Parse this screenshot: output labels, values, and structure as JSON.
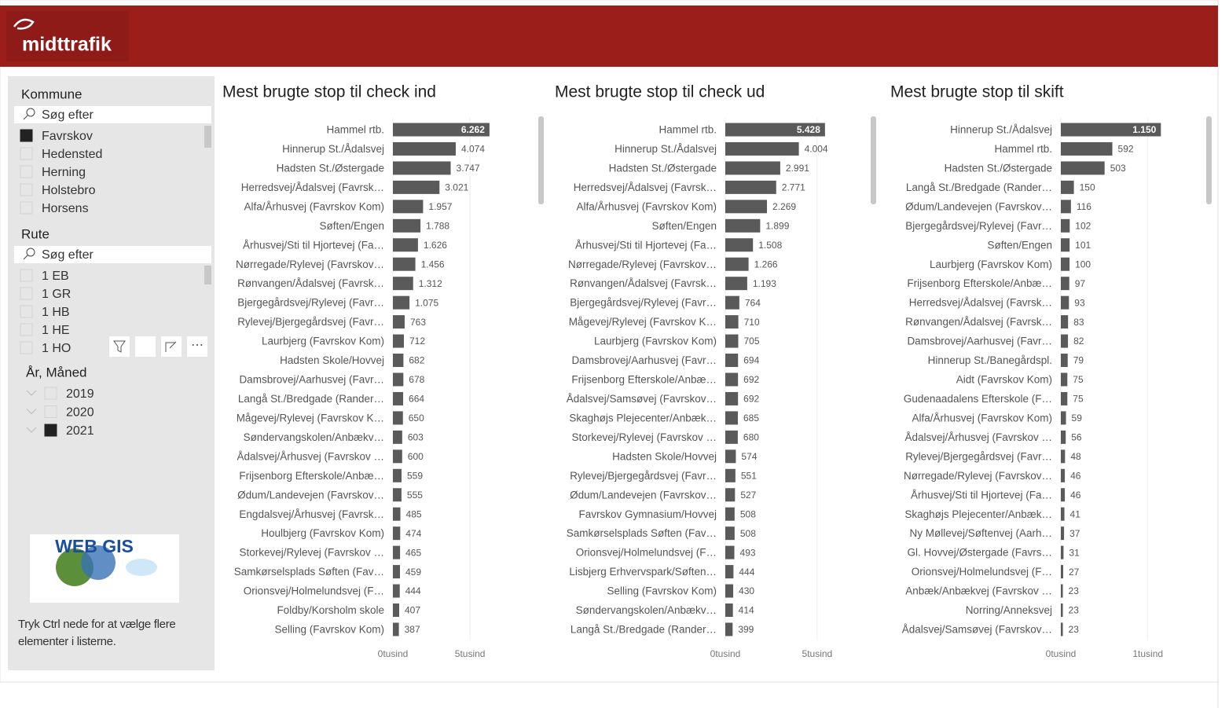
{
  "header": {
    "logo": "midttrafik"
  },
  "slicers": [
    {
      "title": "Kommune",
      "search": "Søg efter",
      "items": [
        {
          "label": "Favrskov",
          "selected": true
        },
        {
          "label": "Hedensted",
          "selected": false
        },
        {
          "label": "Herning",
          "selected": false
        },
        {
          "label": "Holstebro",
          "selected": false
        },
        {
          "label": "Horsens",
          "selected": false
        }
      ]
    },
    {
      "title": "Rute",
      "search": "Søg efter",
      "items": [
        {
          "label": "1 EB",
          "selected": false
        },
        {
          "label": "1 GR",
          "selected": false
        },
        {
          "label": "1 HB",
          "selected": false
        },
        {
          "label": "1 HE",
          "selected": false
        },
        {
          "label": "1 HO",
          "selected": false
        }
      ]
    },
    {
      "title": "År, Måned",
      "items": [
        {
          "label": "2019",
          "selected": false
        },
        {
          "label": "2020",
          "selected": false
        },
        {
          "label": "2021",
          "selected": true
        }
      ]
    }
  ],
  "webgis_logo": "WEB GIS",
  "footer_note": "Tryk Ctrl nede for at vælge flere elementer i listerne.",
  "chart_data": [
    {
      "type": "bar",
      "orientation": "horizontal",
      "title": "Mest brugte stop til check ind",
      "color": "#5a5a5a",
      "categories": [
        "Hammel rtb.",
        "Hinnerup St./Ådalsvej",
        "Hadsten St./Østergade",
        "Herredsvej/Ådalsvej (Favrsk…",
        "Alfa/Århusvej (Favrskov Kom)",
        "Søften/Engen",
        "Århusvej/Sti til Hjortevej (Fa…",
        "Nørregade/Rylevej (Favrskov…",
        "Rønvangen/Ådalsvej (Favrsk…",
        "Bjergegårdsvej/Rylevej (Favr…",
        "Rylevej/Bjergegårdsvej (Favr…",
        "Laurbjerg (Favrskov Kom)",
        "Hadsten Skole/Hovvej",
        "Damsbrovej/Aarhusvej (Favr…",
        "Langå St./Bredgade (Rander…",
        "Mågevej/Rylevej (Favrskov K…",
        "Søndervangskolen/Anbækv…",
        "Ådalsvej/Århusvej (Favrskov …",
        "Frijsenborg Efterskole/Anbæ…",
        "Ødum/Landevejen (Favrskov…",
        "Engdalsvej/Århusvej (Favrsk…",
        "Houlbjerg (Favrskov Kom)",
        "Storkevej/Rylevej (Favrskov …",
        "Samkørselsplads Søften (Fav…",
        "Orionsvej/Holmelundsvej (F…",
        "Foldby/Korsholm skole",
        "Selling (Favrskov Kom)"
      ],
      "values": [
        6262,
        4074,
        3747,
        3021,
        1957,
        1788,
        1626,
        1456,
        1312,
        1075,
        763,
        712,
        682,
        678,
        664,
        650,
        603,
        600,
        559,
        555,
        485,
        474,
        465,
        459,
        444,
        407,
        387
      ],
      "value_labels": [
        "6.262",
        "4.074",
        "3.747",
        "3.021",
        "1.957",
        "1.788",
        "1.626",
        "1.456",
        "1.312",
        "1.075",
        "763",
        "712",
        "682",
        "678",
        "664",
        "650",
        "603",
        "600",
        "559",
        "555",
        "485",
        "474",
        "465",
        "459",
        "444",
        "407",
        "387"
      ],
      "xlim": [
        0,
        8000
      ],
      "xticks": [
        {
          "value": 0,
          "label": "0tusind"
        },
        {
          "value": 5000,
          "label": "5tusind"
        }
      ]
    },
    {
      "type": "bar",
      "orientation": "horizontal",
      "title": "Mest brugte stop til check ud",
      "color": "#5a5a5a",
      "categories": [
        "Hammel rtb.",
        "Hinnerup St./Ådalsvej",
        "Hadsten St./Østergade",
        "Herredsvej/Ådalsvej (Favrsk…",
        "Alfa/Århusvej (Favrskov Kom)",
        "Søften/Engen",
        "Århusvej/Sti til Hjortevej (Fa…",
        "Nørregade/Rylevej (Favrskov…",
        "Rønvangen/Ådalsvej (Favrsk…",
        "Bjergegårdsvej/Rylevej (Favr…",
        "Mågevej/Rylevej (Favrskov K…",
        "Laurbjerg (Favrskov Kom)",
        "Damsbrovej/Aarhusvej (Favr…",
        "Frijsenborg Efterskole/Anbæ…",
        "Ådalsvej/Samsøvej (Favrskov…",
        "Skaghøjs Plejecenter/Anbæk…",
        "Storkevej/Rylevej (Favrskov …",
        "Hadsten Skole/Hovvej",
        "Rylevej/Bjergegårdsvej (Favr…",
        "Ødum/Landevejen (Favrskov…",
        "Favrskov Gymnasium/Hovvej",
        "Samkørselsplads Søften (Fav…",
        "Orionsvej/Holmelundsvej (F…",
        "Lisbjerg Erhvervspark/Søften…",
        "Selling (Favrskov Kom)",
        "Søndervangskolen/Anbækv…",
        "Langå St./Bredgade (Rander…"
      ],
      "values": [
        5428,
        4004,
        2991,
        2771,
        2269,
        1899,
        1508,
        1266,
        1193,
        764,
        710,
        705,
        694,
        692,
        692,
        685,
        680,
        574,
        551,
        527,
        508,
        508,
        493,
        444,
        430,
        414,
        399
      ],
      "value_labels": [
        "5.428",
        "4.004",
        "2.991",
        "2.771",
        "2.269",
        "1.899",
        "1.508",
        "1.266",
        "1.193",
        "764",
        "710",
        "705",
        "694",
        "692",
        "692",
        "685",
        "680",
        "574",
        "551",
        "527",
        "508",
        "508",
        "493",
        "444",
        "430",
        "414",
        "399"
      ],
      "xlim": [
        0,
        8000
      ],
      "xticks": [
        {
          "value": 0,
          "label": "0tusind"
        },
        {
          "value": 5000,
          "label": "5tusind"
        }
      ]
    },
    {
      "type": "bar",
      "orientation": "horizontal",
      "title": "Mest brugte stop til skift",
      "color": "#5a5a5a",
      "categories": [
        "Hinnerup St./Ådalsvej",
        "Hammel rtb.",
        "Hadsten St./Østergade",
        "Langå St./Bredgade (Rander…",
        "Ødum/Landevejen (Favrskov…",
        "Bjergegårdsvej/Rylevej (Favr…",
        "Søften/Engen",
        "Laurbjerg (Favrskov Kom)",
        "Frijsenborg Efterskole/Anbæ…",
        "Herredsvej/Ådalsvej (Favrsk…",
        "Rønvangen/Ådalsvej (Favrsk…",
        "Damsbrovej/Aarhusvej (Favr…",
        "Hinnerup St./Banegårdspl.",
        "Aidt (Favrskov Kom)",
        "Gudenaadalens Efterskole (F…",
        "Alfa/Århusvej (Favrskov Kom)",
        "Ådalsvej/Århusvej (Favrskov …",
        "Rylevej/Bjergegårdsvej (Favr…",
        "Nørregade/Rylevej (Favrskov…",
        "Århusvej/Sti til Hjortevej (Fa…",
        "Skaghøjs Plejecenter/Anbæk…",
        "Ny Møllevej/Søftenvej (Aarh…",
        "Gl. Hovvej/Østergade (Favrs…",
        "Orionsvej/Holmelundsvej (F…",
        "Anbæk/Anbækvej (Favrskov …",
        "Norring/Anneksvej",
        "Ådalsvej/Samsøvej (Favrskov…"
      ],
      "values": [
        1150,
        592,
        503,
        150,
        116,
        102,
        101,
        100,
        97,
        93,
        83,
        82,
        79,
        75,
        75,
        59,
        56,
        48,
        46,
        46,
        41,
        37,
        31,
        27,
        23,
        23,
        23
      ],
      "value_labels": [
        "1.150",
        "592",
        "503",
        "150",
        "116",
        "102",
        "101",
        "100",
        "97",
        "93",
        "83",
        "82",
        "79",
        "75",
        "75",
        "59",
        "56",
        "48",
        "46",
        "46",
        "41",
        "37",
        "31",
        "27",
        "23",
        "23",
        "23"
      ],
      "xlim": [
        0,
        1400
      ],
      "xticks": [
        {
          "value": 0,
          "label": "0tusind"
        },
        {
          "value": 1000,
          "label": "1tusind"
        }
      ]
    }
  ]
}
